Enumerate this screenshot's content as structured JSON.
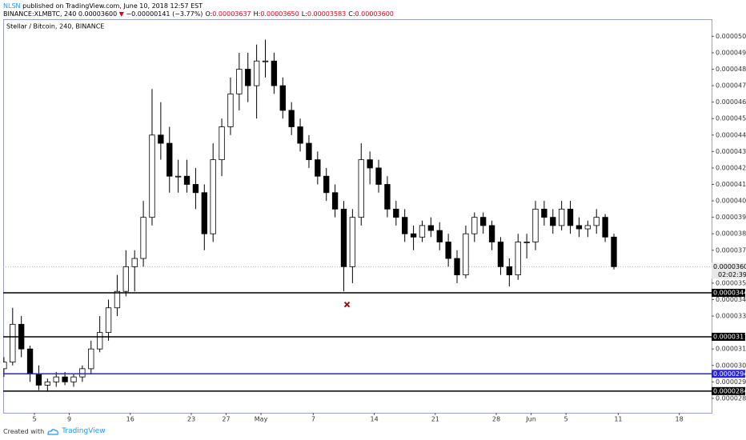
{
  "header": {
    "author": "NLSN",
    "published": "published on TradingView.com, June 10, 2018 12:57 EST",
    "symbol": "BINANCE:XLMBTC, 240",
    "last": "0.00003600",
    "arrow": "▼",
    "change": "−0.00000141 (−3.77%)",
    "ohlc": [
      {
        "label": "O:",
        "value": "0.00003637"
      },
      {
        "label": "H:",
        "value": "0.00003650"
      },
      {
        "label": "L:",
        "value": "0.00003583"
      },
      {
        "label": "C:",
        "value": "0.00003600"
      }
    ]
  },
  "chart_data": {
    "type": "candlestick",
    "title": "Stellar / Bitcoin, 240, BINANCE",
    "x": [
      "2018-04-01",
      "2018-04-02",
      "2018-04-03",
      "2018-04-04",
      "2018-04-05",
      "2018-04-06",
      "2018-04-07",
      "2018-04-08",
      "2018-04-09",
      "2018-04-10",
      "2018-04-11",
      "2018-04-12",
      "2018-04-13",
      "2018-04-14",
      "2018-04-15",
      "2018-04-16",
      "2018-04-17",
      "2018-04-18",
      "2018-04-19",
      "2018-04-20",
      "2018-04-21",
      "2018-04-22",
      "2018-04-23",
      "2018-04-24",
      "2018-04-25",
      "2018-04-26",
      "2018-04-27",
      "2018-04-28",
      "2018-04-29",
      "2018-04-30",
      "2018-05-01",
      "2018-05-02",
      "2018-05-03",
      "2018-05-04",
      "2018-05-05",
      "2018-05-06",
      "2018-05-07",
      "2018-05-08",
      "2018-05-09",
      "2018-05-10",
      "2018-05-11",
      "2018-05-12",
      "2018-05-13",
      "2018-05-14",
      "2018-05-15",
      "2018-05-16",
      "2018-05-17",
      "2018-05-18",
      "2018-05-19",
      "2018-05-20",
      "2018-05-21",
      "2018-05-22",
      "2018-05-23",
      "2018-05-24",
      "2018-05-25",
      "2018-05-26",
      "2018-05-27",
      "2018-05-28",
      "2018-05-29",
      "2018-05-30",
      "2018-05-31",
      "2018-06-01",
      "2018-06-02",
      "2018-06-03",
      "2018-06-04",
      "2018-06-05",
      "2018-06-06",
      "2018-06-07",
      "2018-06-08",
      "2018-06-09",
      "2018-06-10"
    ],
    "open": [
      2.98e-05,
      3.02e-05,
      3.25e-05,
      3.1e-05,
      2.95e-05,
      2.88e-05,
      2.9e-05,
      2.93e-05,
      2.9e-05,
      2.93e-05,
      2.98e-05,
      3.1e-05,
      3.2e-05,
      3.35e-05,
      3.45e-05,
      3.6e-05,
      3.65e-05,
      3.9e-05,
      4.4e-05,
      4.35e-05,
      4.15e-05,
      4.15e-05,
      4.1e-05,
      4.05e-05,
      3.8e-05,
      4.25e-05,
      4.45e-05,
      4.65e-05,
      4.8e-05,
      4.7e-05,
      4.85e-05,
      4.85e-05,
      4.7e-05,
      4.55e-05,
      4.45e-05,
      4.35e-05,
      4.25e-05,
      4.15e-05,
      4.05e-05,
      3.95e-05,
      3.6e-05,
      3.9e-05,
      4.25e-05,
      4.2e-05,
      4.1e-05,
      3.95e-05,
      3.9e-05,
      3.8e-05,
      3.78e-05,
      3.85e-05,
      3.82e-05,
      3.75e-05,
      3.65e-05,
      3.55e-05,
      3.8e-05,
      3.9e-05,
      3.85e-05,
      3.75e-05,
      3.6e-05,
      3.55e-05,
      3.75e-05,
      3.75e-05,
      3.95e-05,
      3.9e-05,
      3.85e-05,
      3.95e-05,
      3.85e-05,
      3.83e-05,
      3.85e-05,
      3.9e-05,
      3.78e-05
    ],
    "high": [
      3.05e-05,
      3.35e-05,
      3.3e-05,
      3.12e-05,
      3e-05,
      2.92e-05,
      2.96e-05,
      2.96e-05,
      2.95e-05,
      3e-05,
      3.15e-05,
      3.3e-05,
      3.4e-05,
      3.55e-05,
      3.7e-05,
      3.7e-05,
      4e-05,
      4.68e-05,
      4.6e-05,
      4.45e-05,
      4.25e-05,
      4.25e-05,
      4.2e-05,
      4.1e-05,
      4.35e-05,
      4.5e-05,
      4.75e-05,
      4.9e-05,
      4.9e-05,
      4.95e-05,
      4.98e-05,
      4.9e-05,
      4.75e-05,
      4.6e-05,
      4.5e-05,
      4.4e-05,
      4.3e-05,
      4.2e-05,
      4.1e-05,
      4e-05,
      3.95e-05,
      4.35e-05,
      4.3e-05,
      4.25e-05,
      4.15e-05,
      4e-05,
      3.95e-05,
      3.85e-05,
      3.88e-05,
      3.9e-05,
      3.87e-05,
      3.8e-05,
      3.7e-05,
      3.85e-05,
      3.93e-05,
      3.93e-05,
      3.88e-05,
      3.78e-05,
      3.65e-05,
      3.8e-05,
      3.8e-05,
      4e-05,
      4e-05,
      3.95e-05,
      4e-05,
      4e-05,
      3.9e-05,
      3.88e-05,
      3.95e-05,
      3.92e-05,
      3.8e-05
    ],
    "low": [
      2.93e-05,
      3e-05,
      3.05e-05,
      2.9e-05,
      2.85e-05,
      2.84e-05,
      2.87e-05,
      2.88e-05,
      2.87e-05,
      2.9e-05,
      2.95e-05,
      3.08e-05,
      3.15e-05,
      3.3e-05,
      3.42e-05,
      3.45e-05,
      3.6e-05,
      3.85e-05,
      4.25e-05,
      4.05e-05,
      4.05e-05,
      4.05e-05,
      3.95e-05,
      3.7e-05,
      3.75e-05,
      4.15e-05,
      4.4e-05,
      4.55e-05,
      4.6e-05,
      4.5e-05,
      4.75e-05,
      4.65e-05,
      4.5e-05,
      4.4e-05,
      4.3e-05,
      4.2e-05,
      4.1e-05,
      4e-05,
      3.9e-05,
      3.45e-05,
      3.5e-05,
      3.85e-05,
      4.1e-05,
      4.05e-05,
      3.9e-05,
      3.85e-05,
      3.75e-05,
      3.7e-05,
      3.75e-05,
      3.78e-05,
      3.7e-05,
      3.6e-05,
      3.5e-05,
      3.53e-05,
      3.75e-05,
      3.8e-05,
      3.7e-05,
      3.55e-05,
      3.48e-05,
      3.52e-05,
      3.65e-05,
      3.7e-05,
      3.85e-05,
      3.8e-05,
      3.82e-05,
      3.8e-05,
      3.78e-05,
      3.78e-05,
      3.8e-05,
      3.75e-05,
      3.583e-05
    ],
    "close": [
      3.02e-05,
      3.25e-05,
      3.1e-05,
      2.95e-05,
      2.88e-05,
      2.9e-05,
      2.93e-05,
      2.9e-05,
      2.93e-05,
      2.98e-05,
      3.1e-05,
      3.2e-05,
      3.35e-05,
      3.45e-05,
      3.6e-05,
      3.65e-05,
      3.9e-05,
      4.4e-05,
      4.35e-05,
      4.15e-05,
      4.15e-05,
      4.1e-05,
      4.05e-05,
      3.8e-05,
      4.25e-05,
      4.45e-05,
      4.65e-05,
      4.8e-05,
      4.7e-05,
      4.85e-05,
      4.85e-05,
      4.7e-05,
      4.55e-05,
      4.45e-05,
      4.35e-05,
      4.25e-05,
      4.15e-05,
      4.05e-05,
      3.95e-05,
      3.6e-05,
      3.9e-05,
      4.25e-05,
      4.2e-05,
      4.1e-05,
      3.95e-05,
      3.9e-05,
      3.8e-05,
      3.78e-05,
      3.85e-05,
      3.82e-05,
      3.75e-05,
      3.65e-05,
      3.55e-05,
      3.8e-05,
      3.9e-05,
      3.85e-05,
      3.75e-05,
      3.6e-05,
      3.55e-05,
      3.75e-05,
      3.75e-05,
      3.95e-05,
      3.9e-05,
      3.85e-05,
      3.95e-05,
      3.85e-05,
      3.83e-05,
      3.85e-05,
      3.9e-05,
      3.78e-05,
      3.6e-05
    ],
    "up_color": "#ffffff",
    "down_color": "#000000",
    "wick_color": "#000000",
    "xlim": [
      "2018-04-01T10:00",
      "2018-06-21T17:00"
    ],
    "xticks": [
      {
        "value": "2018-04-05",
        "label": "5"
      },
      {
        "value": "2018-04-09",
        "label": "9"
      },
      {
        "value": "2018-04-16",
        "label": "16"
      },
      {
        "value": "2018-04-23",
        "label": "23"
      },
      {
        "value": "2018-04-27",
        "label": "27"
      },
      {
        "value": "2018-05-01",
        "label": "May"
      },
      {
        "value": "2018-05-07",
        "label": "7"
      },
      {
        "value": "2018-05-14",
        "label": "14"
      },
      {
        "value": "2018-05-21",
        "label": "21"
      },
      {
        "value": "2018-05-28",
        "label": "28"
      },
      {
        "value": "2018-06-01",
        "label": "Jun"
      },
      {
        "value": "2018-06-05",
        "label": "5"
      },
      {
        "value": "2018-06-11",
        "label": "11"
      },
      {
        "value": "2018-06-18",
        "label": "18"
      }
    ],
    "ylim": [
      2.712e-05,
      5.104e-05
    ],
    "yticks": [
      {
        "value": 5e-05,
        "label": "0.00005000"
      },
      {
        "value": 4.9e-05,
        "label": "0.00004900"
      },
      {
        "value": 4.8e-05,
        "label": "0.00004800"
      },
      {
        "value": 4.7e-05,
        "label": "0.00004700"
      },
      {
        "value": 4.6e-05,
        "label": "0.00004600"
      },
      {
        "value": 4.5e-05,
        "label": "0.00004500"
      },
      {
        "value": 4.4e-05,
        "label": "0.00004400"
      },
      {
        "value": 4.3e-05,
        "label": "0.00004300"
      },
      {
        "value": 4.2e-05,
        "label": "0.00004200"
      },
      {
        "value": 4.1e-05,
        "label": "0.00004100"
      },
      {
        "value": 4e-05,
        "label": "0.00004000"
      },
      {
        "value": 3.9e-05,
        "label": "0.00003900"
      },
      {
        "value": 3.8e-05,
        "label": "0.00003800"
      },
      {
        "value": 3.7e-05,
        "label": "0.00003700"
      },
      {
        "value": 3.5e-05,
        "label": "0.00003500"
      },
      {
        "value": 3.4e-05,
        "label": "0.00003400"
      },
      {
        "value": 3.3e-05,
        "label": "0.00003300"
      },
      {
        "value": 3.1e-05,
        "label": "0.00003100"
      },
      {
        "value": 3e-05,
        "label": "0.00003000"
      },
      {
        "value": 2.9e-05,
        "label": "0.00002900"
      },
      {
        "value": 2.8e-05,
        "label": "0.00002800"
      }
    ],
    "hlines": [
      {
        "value": 3.441e-05,
        "color": "#000000"
      },
      {
        "value": 3.174e-05,
        "color": "#000000"
      },
      {
        "value": 2.949e-05,
        "color": "#2424e0"
      },
      {
        "value": 2.844e-05,
        "color": "#000000"
      }
    ],
    "last_price": {
      "value": 3.6e-05,
      "label": "0.00003600",
      "countdown": "02:02:39"
    },
    "marker": {
      "x": "2018-05-10T21:00",
      "value": 3.37e-05,
      "color": "#8b1a1a"
    }
  },
  "footer": {
    "created": "Created with",
    "brand": "TradingView"
  }
}
